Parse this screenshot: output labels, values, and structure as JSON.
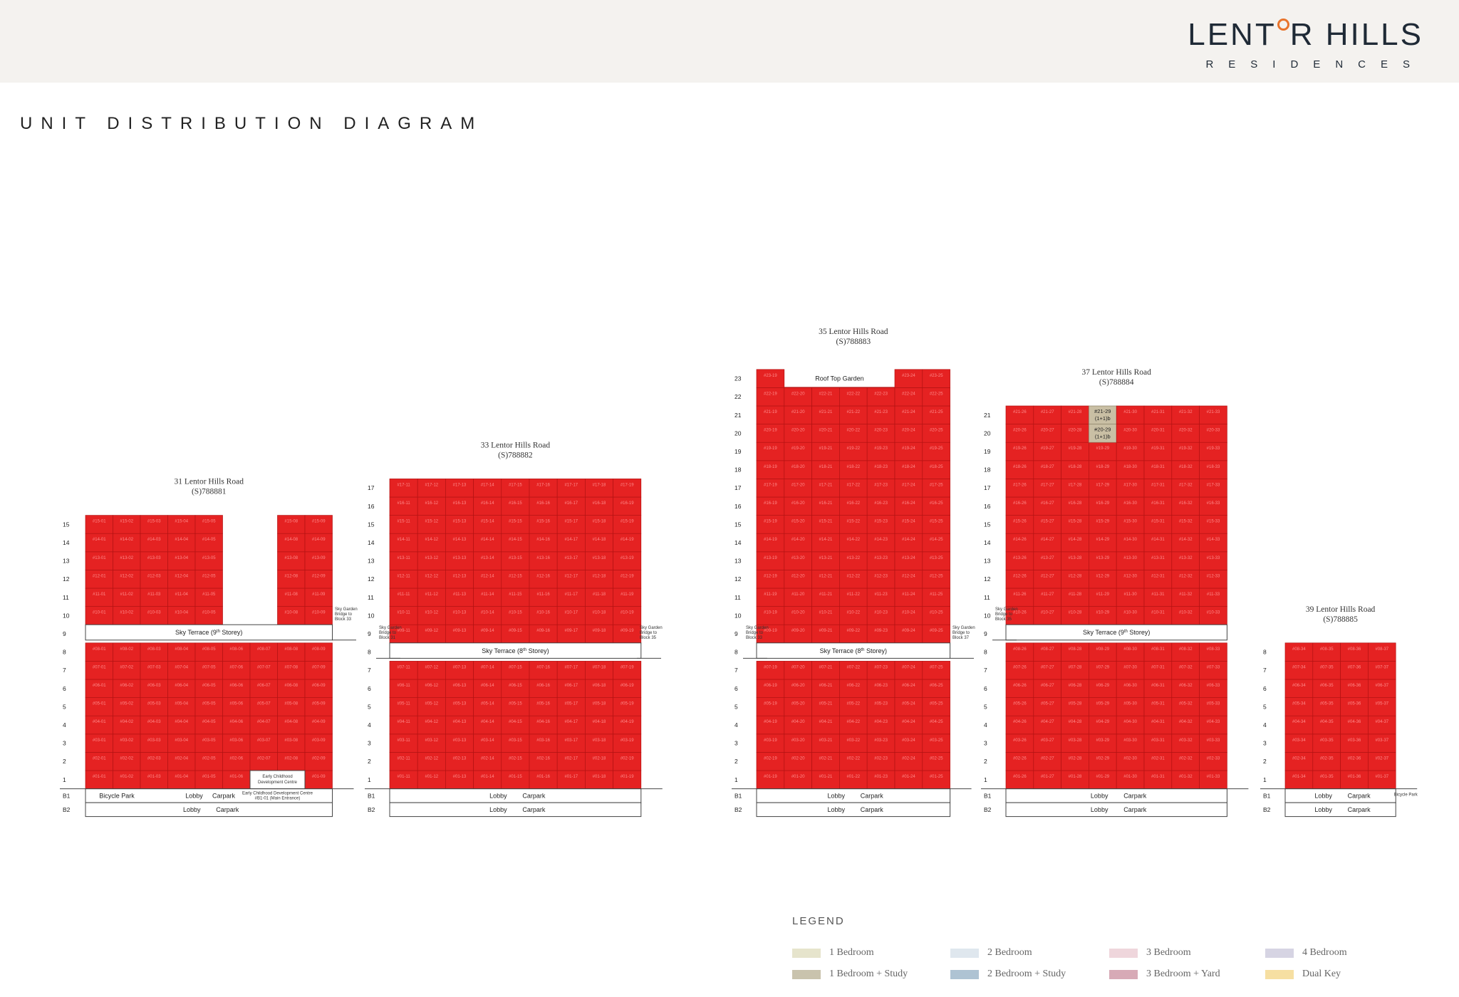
{
  "brand": {
    "logo_left": "LENT",
    "logo_right": "R HILLS",
    "logo_sub": "RESIDENCES"
  },
  "page_title": "UNIT DISTRIBUTION DIAGRAM",
  "buildings": [
    {
      "address": "31 Lentor Hills Road",
      "postal": "(S)788881",
      "top_floor": 15,
      "columns": [
        1,
        2,
        3,
        4,
        5,
        6,
        7,
        8,
        9
      ],
      "tower_gap_columns": [
        6,
        7
      ],
      "tower_gap_from_floor": 10,
      "sky_terrace": "Sky Terrace (9th Storey)",
      "sky_floor": 9,
      "bridge_label": "Sky Garden Bridge to Block 33",
      "special_cells": [
        {
          "floor": 1,
          "label": "Early Childhood Development Centre"
        }
      ],
      "b1": [
        "Bicycle Park",
        "Lobby",
        "Carpark",
        "Early Childhood Development Centre #B1-01 (Main Entrance)"
      ],
      "b2": [
        "Lobby",
        "Carpark"
      ]
    },
    {
      "address": "33 Lentor Hills Road",
      "postal": "(S)788882",
      "top_floor": 17,
      "columns": [
        11,
        12,
        13,
        14,
        15,
        16,
        17,
        18,
        19
      ],
      "sky_terrace": "Sky Terrace (8th Storey)",
      "sky_floor": 8,
      "bridge_label": "Sky Garden Bridge to Block 31",
      "bridge_label_right": "Sky Garden Bridge to Block 35",
      "b1": [
        "Lobby",
        "Carpark"
      ],
      "b2": [
        "Lobby",
        "Carpark"
      ]
    },
    {
      "address": "35 Lentor Hills Road",
      "postal": "(S)788883",
      "top_floor": 23,
      "columns": [
        19,
        20,
        21,
        22,
        23,
        24,
        25
      ],
      "roof_label": "Roof Top Garden",
      "sky_terrace": "Sky Terrace (8th Storey)",
      "sky_floor": 8,
      "bridge_label": "Sky Garden Bridge to Block 33",
      "bridge_label_right": "Sky Garden Bridge to Block 37",
      "b1": [
        "Lobby",
        "Carpark"
      ],
      "b2": [
        "Lobby",
        "Carpark"
      ]
    },
    {
      "address": "37 Lentor Hills Road",
      "postal": "(S)788884",
      "top_floor": 21,
      "columns": [
        26,
        27,
        28,
        29,
        30,
        31,
        32,
        33
      ],
      "highlight_units": [
        {
          "label": "#21-29",
          "type": "(1+1)b"
        },
        {
          "label": "#20-29",
          "type": "(1+1)b"
        }
      ],
      "sky_terrace": "Sky Terrace (9th Storey)",
      "sky_floor": 9,
      "bridge_label": "Sky Garden Bridge to Block 35",
      "b1": [
        "Lobby",
        "Carpark"
      ],
      "b2": [
        "Lobby",
        "Carpark"
      ]
    },
    {
      "address": "39 Lentor Hills Road",
      "postal": "(S)788885",
      "top_floor": 8,
      "columns": [
        34,
        35,
        36,
        37
      ],
      "b1": [
        "Lobby",
        "Carpark",
        "Bicycle Park"
      ],
      "b2": [
        "Lobby",
        "Carpark"
      ]
    }
  ],
  "floor_labels_b": [
    "B1",
    "B2"
  ],
  "legend": {
    "title": "LEGEND",
    "items": [
      {
        "label": "1 Bedroom",
        "color": "#e6e4cc"
      },
      {
        "label": "1 Bedroom + Study",
        "color": "#c9c3ad"
      },
      {
        "label": "2 Bedroom",
        "color": "#dfe7ee"
      },
      {
        "label": "2 Bedroom + Study",
        "color": "#aec3d3"
      },
      {
        "label": "3 Bedroom",
        "color": "#efd6dc"
      },
      {
        "label": "3 Bedroom + Yard",
        "color": "#d7aab6"
      },
      {
        "label": "4 Bedroom",
        "color": "#d6d4e3"
      },
      {
        "label": "Dual Key",
        "color": "#f6dfa2"
      }
    ]
  }
}
